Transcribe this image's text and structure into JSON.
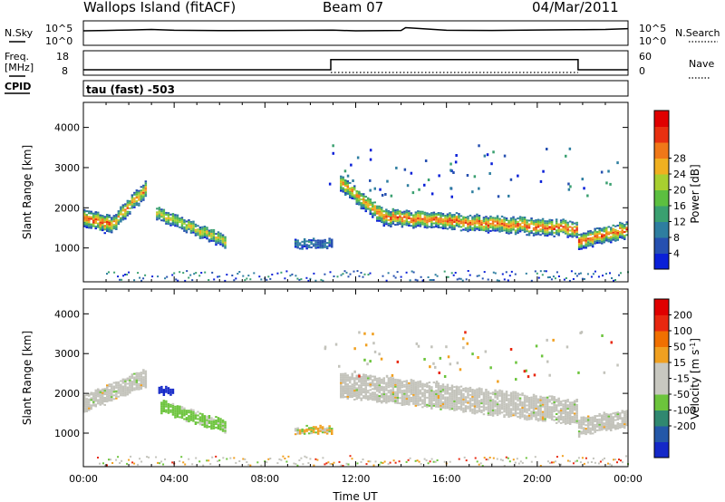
{
  "header": {
    "site": "Wallops Island (fitACF)",
    "beam": "Beam 07",
    "date": "04/Mar/2011"
  },
  "top_panels": {
    "nsky_label": "N.Sky",
    "nsky_tick_top": "10^5",
    "nsky_tick_bottom": "10^0",
    "nsearch_label": "N.Search",
    "nsearch_tick_top": "10^5",
    "nsearch_tick_bottom": "10^0",
    "freq_label_1": "Freq.",
    "freq_label_2": "[MHz]",
    "freq_tick_top": "18",
    "freq_tick_bottom": "8",
    "nave_label": "Nave",
    "nave_tick_top": "60",
    "nave_tick_bottom": "0",
    "cpid_label": "CPID",
    "cpid_value": "tau (fast) -503"
  },
  "colors": {
    "power": [
      "#0a20d8",
      "#2650b0",
      "#2e7ea0",
      "#3aa070",
      "#5cbf40",
      "#a8d030",
      "#f0b020",
      "#f07818",
      "#e83010",
      "#e00000"
    ],
    "velocity": [
      "#1428c8",
      "#2458a8",
      "#308870",
      "#6cc43c",
      "#c8c8c0",
      "#c8c8c0",
      "#f0a020",
      "#f07000",
      "#e82810",
      "#e00000"
    ],
    "ground_scatter": "#c3c3bb"
  },
  "chart_data": [
    {
      "type": "line",
      "name": "nsky-nsearch",
      "x": [
        0,
        1,
        2,
        3,
        4,
        6,
        8,
        10,
        11,
        12,
        14,
        14.2,
        16,
        18,
        20,
        22,
        23,
        24
      ],
      "y": [
        1000,
        1200,
        1500,
        2000,
        1300,
        1100,
        1200,
        1300,
        1400,
        1000,
        1200,
        5000,
        1300,
        1200,
        1500,
        1800,
        2000,
        3000
      ],
      "ylim_log10": [
        0,
        5
      ]
    },
    {
      "type": "line",
      "name": "frequency",
      "x": [
        0,
        10.9,
        10.9,
        21.8,
        21.8,
        24
      ],
      "freq_mhz": [
        10,
        10,
        14.5,
        14.5,
        10,
        10
      ],
      "nave_x": [
        10.9,
        21.8
      ],
      "nave_value": [
        0,
        0
      ],
      "ylim_mhz": [
        8,
        18
      ],
      "ylim_nave": [
        0,
        60
      ]
    },
    {
      "type": "heatmap",
      "name": "power",
      "xlabel": "",
      "ylabel": "Slant Range [km]",
      "xlim_hours": [
        0,
        24
      ],
      "ylim_km": [
        180,
        4600
      ],
      "y_ticks": [
        "1000",
        "2000",
        "3000",
        "4000"
      ],
      "colorbar_title": "Power [dB]",
      "colorbar_ticks": [
        "4",
        "8",
        "12",
        "16",
        "20",
        "24",
        "28"
      ],
      "colorbar_range": [
        0,
        30
      ],
      "features": [
        {
          "t0": 0,
          "t1": 1.2,
          "r_start": 1700,
          "r_end": 1550,
          "width_km": 420,
          "peak_db": 26
        },
        {
          "t0": 1.2,
          "t1": 2.8,
          "r_start": 1550,
          "r_end": 2500,
          "width_km": 380,
          "peak_db": 22
        },
        {
          "t0": 3.2,
          "t1": 6.2,
          "r_start": 1850,
          "r_end": 1150,
          "width_km": 300,
          "peak_db": 20
        },
        {
          "t0": 9.3,
          "t1": 10.9,
          "r_start": 1100,
          "r_end": 1100,
          "width_km": 220,
          "peak_db": 8
        },
        {
          "t0": 11.3,
          "t1": 13.2,
          "r_start": 2600,
          "r_end": 1750,
          "width_km": 400,
          "peak_db": 24
        },
        {
          "t0": 13.2,
          "t1": 21.8,
          "r_start": 1750,
          "r_end": 1450,
          "width_km": 380,
          "peak_db": 27
        },
        {
          "t0": 21.8,
          "t1": 24,
          "r_start": 1150,
          "r_end": 1450,
          "width_km": 380,
          "peak_db": 28
        }
      ]
    },
    {
      "type": "heatmap",
      "name": "velocity",
      "xlabel": "Time UT",
      "ylabel": "Slant Range [km]",
      "xlim_hours": [
        0,
        24
      ],
      "ylim_km": [
        180,
        4600
      ],
      "x_ticks": [
        "00:00",
        "04:00",
        "08:00",
        "12:00",
        "16:00",
        "20:00",
        "00:00"
      ],
      "y_ticks": [
        "1000",
        "2000",
        "3000",
        "4000"
      ],
      "colorbar_title": "Velocity [m s^-1]",
      "colorbar_ticks": [
        "200",
        "100",
        "50",
        "15",
        "-15",
        "-50",
        "-100",
        "-200"
      ],
      "features": [
        {
          "t0": 0,
          "t1": 2.8,
          "r_start": 1700,
          "r_end": 2400,
          "width_km": 420,
          "class": "ground"
        },
        {
          "t0": 3.4,
          "t1": 6.2,
          "r_start": 1650,
          "r_end": 1150,
          "width_km": 280,
          "class": "green"
        },
        {
          "t0": 3.3,
          "t1": 4.0,
          "r_start": 2050,
          "r_end": 2050,
          "width_km": 150,
          "class": "blue"
        },
        {
          "t0": 9.3,
          "t1": 10.9,
          "r_start": 1080,
          "r_end": 1080,
          "width_km": 180,
          "class": "mixed"
        },
        {
          "t0": 11.3,
          "t1": 21.8,
          "r_start": 2200,
          "r_end": 1500,
          "width_km": 600,
          "class": "ground"
        },
        {
          "t0": 21.8,
          "t1": 24,
          "r_start": 1150,
          "r_end": 1400,
          "width_km": 450,
          "class": "ground"
        }
      ]
    }
  ]
}
